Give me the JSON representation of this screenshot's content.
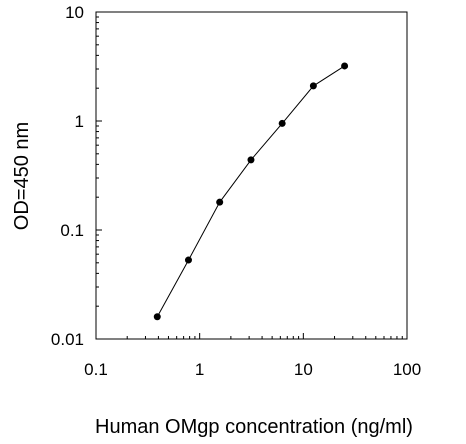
{
  "chart_data": {
    "type": "line",
    "title": "",
    "xlabel": "Human OMgp concentration (ng/ml)",
    "ylabel": "OD=450 nm",
    "xscale": "log",
    "yscale": "log",
    "xlim": [
      0.1,
      100
    ],
    "ylim": [
      0.01,
      10
    ],
    "xticks": [
      0.1,
      1,
      10,
      100
    ],
    "xtick_labels": [
      "0.1",
      "1",
      "10",
      "100"
    ],
    "yticks": [
      0.01,
      0.1,
      1,
      10
    ],
    "ytick_labels": [
      "0.01",
      "0.1",
      "1",
      "10"
    ],
    "grid": false,
    "legend": "none",
    "series": [
      {
        "x": [
          0.39,
          0.78,
          1.56,
          3.125,
          6.25,
          12.5,
          25
        ],
        "y": [
          0.016,
          0.053,
          0.18,
          0.44,
          0.95,
          2.1,
          3.2
        ],
        "color": "#000000",
        "marker": "circle"
      }
    ]
  }
}
